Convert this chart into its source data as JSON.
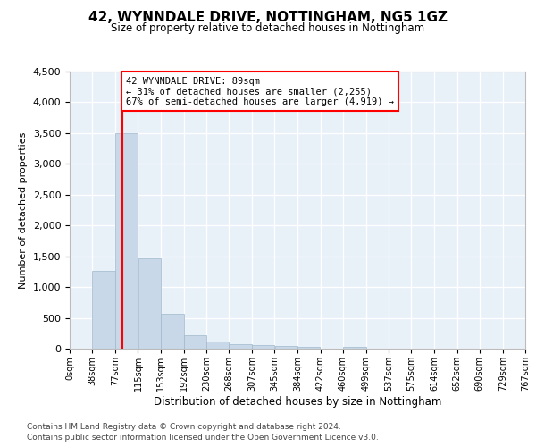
{
  "title": "42, WYNNDALE DRIVE, NOTTINGHAM, NG5 1GZ",
  "subtitle": "Size of property relative to detached houses in Nottingham",
  "xlabel": "Distribution of detached houses by size in Nottingham",
  "ylabel": "Number of detached properties",
  "bar_color": "#c8d8e8",
  "bar_edge_color": "#a0b8cc",
  "bg_color": "#e8f0f8",
  "grid_color": "#ffffff",
  "annotation_line1": "42 WYNNDALE DRIVE: 89sqm",
  "annotation_line2": "← 31% of detached houses are smaller (2,255)",
  "annotation_line3": "67% of semi-detached houses are larger (4,919) →",
  "red_line_x": 89,
  "ylim": [
    0,
    4500
  ],
  "yticks": [
    0,
    500,
    1000,
    1500,
    2000,
    2500,
    3000,
    3500,
    4000,
    4500
  ],
  "bin_edges": [
    0,
    38,
    77,
    115,
    153,
    192,
    230,
    268,
    307,
    345,
    384,
    422,
    460,
    499,
    537,
    575,
    614,
    652,
    690,
    729,
    767
  ],
  "bar_heights": [
    5,
    1270,
    3500,
    1470,
    560,
    220,
    110,
    75,
    55,
    40,
    35,
    0,
    35,
    0,
    0,
    0,
    0,
    0,
    0,
    0
  ],
  "footnote1": "Contains HM Land Registry data © Crown copyright and database right 2024.",
  "footnote2": "Contains public sector information licensed under the Open Government Licence v3.0."
}
